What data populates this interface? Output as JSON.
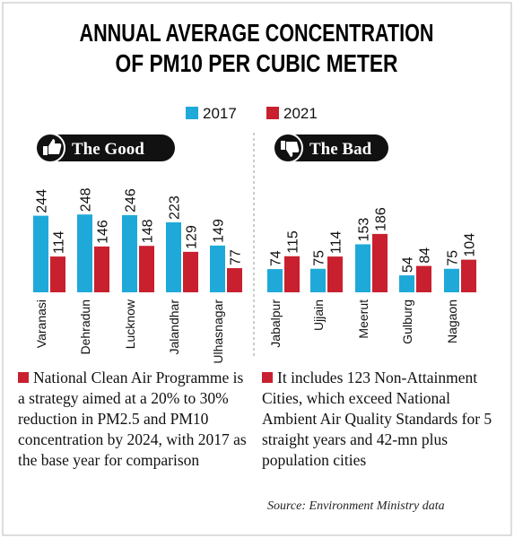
{
  "title": [
    "ANNUAL AVERAGE CONCENTRATION",
    "OF PM10 PER CUBIC METER"
  ],
  "chart_data": [
    {
      "type": "bar",
      "title": "The Good",
      "categories": [
        "Varanasi",
        "Dehradun",
        "Lucknow",
        "Jalandhar",
        "Ulhasnagar"
      ],
      "series": [
        {
          "name": "2017",
          "color": "#1fa9d9",
          "values": [
            244,
            248,
            246,
            223,
            149
          ]
        },
        {
          "name": "2021",
          "color": "#c8202f",
          "values": [
            114,
            146,
            148,
            129,
            77
          ]
        }
      ]
    },
    {
      "type": "bar",
      "title": "The Bad",
      "categories": [
        "Jabalpur",
        "Ujjain",
        "Meerut",
        "Gulburg",
        "Nagaon"
      ],
      "series": [
        {
          "color": "#1fa9d9",
          "values": [
            74,
            75,
            153,
            54,
            75
          ]
        },
        {
          "color": "#c8202f",
          "values": [
            115,
            114,
            186,
            84,
            104
          ]
        }
      ]
    }
  ],
  "notes": [
    "National Clean Air Programme is a strategy aimed at a 20% to 30% reduction in PM2.5 and PM10 concentration by 2024, with 2017 as the base year for comparison",
    "It includes 123 Non-Attainment Cities, which exceed National Ambient Air Quality Standards for 5 straight years and 42-mn plus population cities"
  ],
  "source": "Source: Environment Ministry data"
}
